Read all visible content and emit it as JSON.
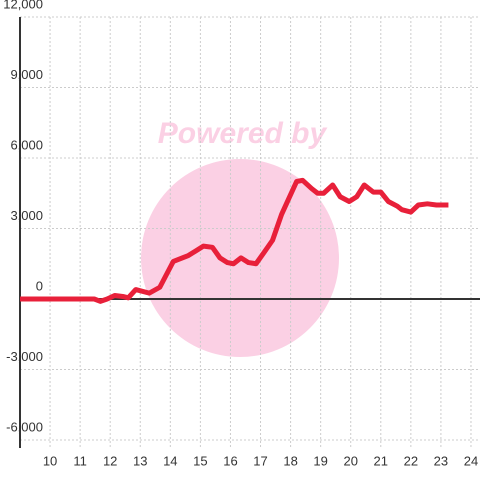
{
  "chart_data": {
    "type": "line",
    "watermark": "Powered by",
    "color": "#e8203a",
    "x": [
      9.0,
      11.47,
      11.67,
      11.9,
      12.15,
      12.45,
      12.6,
      12.85,
      13.3,
      13.65,
      14.1,
      14.6,
      14.85,
      15.1,
      15.4,
      15.65,
      15.9,
      16.1,
      16.35,
      16.6,
      16.85,
      17.1,
      17.4,
      17.7,
      17.95,
      18.2,
      18.4,
      18.7,
      18.9,
      19.1,
      19.4,
      19.65,
      19.95,
      20.2,
      20.45,
      20.75,
      21.0,
      21.25,
      21.55,
      21.7,
      22.0,
      22.25,
      22.55,
      22.85,
      23.25
    ],
    "values": [
      0,
      0,
      -100,
      0,
      150,
      100,
      50,
      400,
      250,
      500,
      1600,
      1850,
      2050,
      2250,
      2200,
      1750,
      1550,
      1500,
      1750,
      1550,
      1500,
      1950,
      2500,
      3600,
      4300,
      5000,
      5050,
      4700,
      4500,
      4500,
      4850,
      4350,
      4150,
      4350,
      4850,
      4550,
      4550,
      4150,
      3950,
      3800,
      3700,
      4000,
      4050,
      4000,
      4000
    ],
    "xlim": [
      9,
      24.3
    ],
    "xticks": [
      10,
      11,
      12,
      13,
      14,
      15,
      16,
      17,
      18,
      19,
      20,
      21,
      22,
      23,
      24
    ],
    "ylim": [
      -6000,
      12000
    ],
    "yticks": [
      {
        "value": -6000,
        "label": "-6,000"
      },
      {
        "value": -3000,
        "label": "-3,000"
      },
      0,
      {
        "value": 3000,
        "label": "3,000"
      },
      {
        "value": 6000,
        "label": "6,000"
      },
      {
        "value": 9000,
        "label": "9,000"
      },
      {
        "value": 12000,
        "label": "12,000"
      }
    ],
    "grid": true
  }
}
